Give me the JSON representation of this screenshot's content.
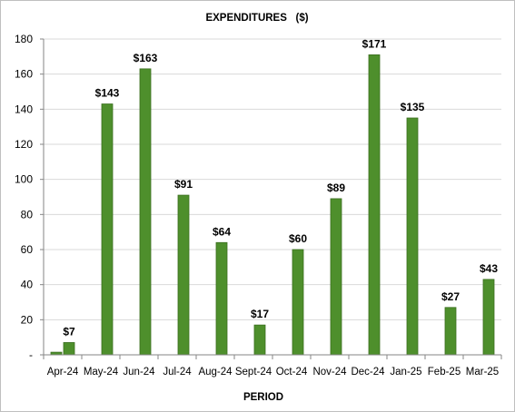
{
  "chart_data": {
    "type": "bar",
    "title": "EXPENDITURES   ($)",
    "xlabel": "PERIOD",
    "ylabel": "",
    "ylim": [
      0,
      180
    ],
    "yticks": [
      0,
      20,
      40,
      60,
      80,
      100,
      120,
      140,
      160,
      180
    ],
    "ytick_labels": [
      "-",
      "20",
      "40",
      "60",
      "80",
      "100",
      "120",
      "140",
      "160",
      "180"
    ],
    "grid": true,
    "legend": "none",
    "bar_color": "#4e8f2c",
    "bar_edge_color": "#3a6e1f",
    "categories": [
      "Apr-24",
      "May-24",
      "Jun-24",
      "Jul-24",
      "Aug-24",
      "Sept-24",
      "Oct-24",
      "Nov-24",
      "Dec-24",
      "Jan-25",
      "Feb-25",
      "Mar-25"
    ],
    "series": [
      {
        "values": [
          7,
          143,
          163,
          91,
          64,
          17,
          60,
          89,
          171,
          135,
          27,
          43
        ]
      }
    ],
    "data_labels": [
      "$7",
      "$143",
      "$163",
      "$91",
      "$64",
      "$17",
      "$60",
      "$89",
      "$171",
      "$135",
      "$27",
      "$43"
    ],
    "extra_marks": [
      {
        "category": "Apr-24",
        "value": 1.5
      }
    ]
  }
}
